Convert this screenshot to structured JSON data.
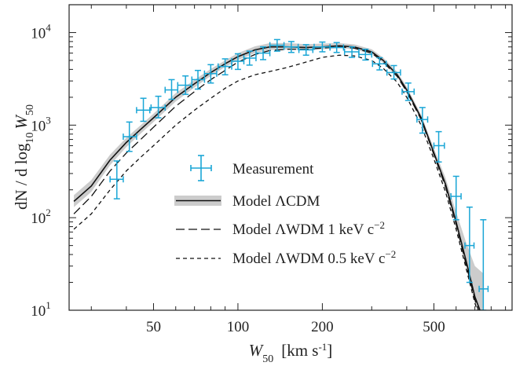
{
  "chart_data": {
    "type": "line",
    "xscale": "log",
    "yscale": "log",
    "xlim": [
      25,
      950
    ],
    "ylim": [
      10,
      20000
    ],
    "grid": false,
    "legend_position": "center",
    "x_ticks": [
      {
        "value": 50,
        "label": "50"
      },
      {
        "value": 100,
        "label": "100"
      },
      {
        "value": 200,
        "label": "200"
      },
      {
        "value": 500,
        "label": "500"
      }
    ],
    "y_ticks": [
      {
        "value": 10,
        "base": "10",
        "exp": "1"
      },
      {
        "value": 100,
        "base": "10",
        "exp": "2"
      },
      {
        "value": 1000,
        "base": "10",
        "exp": "3"
      },
      {
        "value": 10000,
        "base": "10",
        "exp": "4"
      }
    ],
    "xlabel": {
      "main": "W",
      "sub": "50",
      "units": "[km s",
      "units_exp": "-1",
      "units_end": "]"
    },
    "ylabel": {
      "main": "dN / d log",
      "sub": "10",
      "var": "W",
      "var_sub": "50"
    },
    "series": [
      {
        "name": "Measurement",
        "kind": "errorbar",
        "color": "#1aa6d6",
        "points": [
          {
            "x": 37,
            "y": 260,
            "xlo": 35,
            "xhi": 39,
            "ylo": 160,
            "yhi": 410
          },
          {
            "x": 41,
            "y": 750,
            "xlo": 39,
            "xhi": 43.5,
            "ylo": 520,
            "yhi": 1080
          },
          {
            "x": 46,
            "y": 1450,
            "xlo": 43.5,
            "xhi": 48.5,
            "ylo": 1100,
            "yhi": 1950
          },
          {
            "x": 52,
            "y": 1550,
            "xlo": 49,
            "xhi": 55,
            "ylo": 1200,
            "yhi": 2050
          },
          {
            "x": 58,
            "y": 2400,
            "xlo": 55,
            "xhi": 61,
            "ylo": 1900,
            "yhi": 3100
          },
          {
            "x": 65,
            "y": 2700,
            "xlo": 61,
            "xhi": 68.5,
            "ylo": 2150,
            "yhi": 3400
          },
          {
            "x": 72,
            "y": 3100,
            "xlo": 68.5,
            "xhi": 76,
            "ylo": 2450,
            "yhi": 3900
          },
          {
            "x": 80,
            "y": 3600,
            "xlo": 76,
            "xhi": 84,
            "ylo": 2850,
            "yhi": 4500
          },
          {
            "x": 90,
            "y": 4300,
            "xlo": 85,
            "xhi": 95,
            "ylo": 3500,
            "yhi": 5200
          },
          {
            "x": 100,
            "y": 4900,
            "xlo": 95,
            "xhi": 105,
            "ylo": 4000,
            "yhi": 5900
          },
          {
            "x": 110,
            "y": 5300,
            "xlo": 105,
            "xhi": 116,
            "ylo": 4450,
            "yhi": 6300
          },
          {
            "x": 123,
            "y": 6000,
            "xlo": 116,
            "xhi": 130,
            "ylo": 5100,
            "yhi": 7000
          },
          {
            "x": 138,
            "y": 7300,
            "xlo": 130,
            "xhi": 146,
            "ylo": 6300,
            "yhi": 8400
          },
          {
            "x": 155,
            "y": 7000,
            "xlo": 146,
            "xhi": 164,
            "ylo": 6100,
            "yhi": 8000
          },
          {
            "x": 175,
            "y": 6500,
            "xlo": 165,
            "xhi": 185,
            "ylo": 5700,
            "yhi": 7400
          },
          {
            "x": 200,
            "y": 7000,
            "xlo": 187,
            "xhi": 213,
            "ylo": 6200,
            "yhi": 7900
          },
          {
            "x": 225,
            "y": 6900,
            "xlo": 213,
            "xhi": 238,
            "ylo": 6100,
            "yhi": 7800
          },
          {
            "x": 255,
            "y": 6200,
            "xlo": 240,
            "xhi": 270,
            "ylo": 5400,
            "yhi": 7000
          },
          {
            "x": 285,
            "y": 5800,
            "xlo": 270,
            "xhi": 300,
            "ylo": 5050,
            "yhi": 6600
          },
          {
            "x": 320,
            "y": 4600,
            "xlo": 302,
            "xhi": 338,
            "ylo": 3950,
            "yhi": 5350
          },
          {
            "x": 360,
            "y": 3700,
            "xlo": 340,
            "xhi": 380,
            "ylo": 3150,
            "yhi": 4400
          },
          {
            "x": 405,
            "y": 2300,
            "xlo": 385,
            "xhi": 425,
            "ylo": 1850,
            "yhi": 2850
          },
          {
            "x": 455,
            "y": 1150,
            "xlo": 435,
            "xhi": 475,
            "ylo": 820,
            "yhi": 1550
          },
          {
            "x": 520,
            "y": 600,
            "xlo": 500,
            "xhi": 545,
            "ylo": 400,
            "yhi": 850
          },
          {
            "x": 600,
            "y": 170,
            "xlo": 575,
            "xhi": 625,
            "ylo": 95,
            "yhi": 280
          },
          {
            "x": 670,
            "y": 50,
            "xlo": 645,
            "xhi": 695,
            "ylo": 20,
            "yhi": 130
          },
          {
            "x": 750,
            "y": 17,
            "xlo": 725,
            "xhi": 780,
            "ylo": 10,
            "yhi": 95
          }
        ]
      },
      {
        "name": "Model ΛCDM",
        "kind": "line",
        "color": "#111111",
        "line_style": "solid",
        "band_color": "#cccccc",
        "x": [
          26,
          30,
          35,
          40,
          45,
          50,
          60,
          70,
          80,
          90,
          100,
          115,
          130,
          150,
          175,
          200,
          230,
          260,
          300,
          330,
          370,
          400,
          450,
          500,
          550,
          600,
          650,
          700,
          750
        ],
        "y": [
          150,
          220,
          420,
          650,
          900,
          1200,
          2000,
          2800,
          3700,
          4600,
          5500,
          6500,
          7000,
          7000,
          6900,
          7000,
          7200,
          7000,
          6200,
          5000,
          3500,
          2400,
          1200,
          500,
          230,
          90,
          35,
          14,
          8
        ],
        "band_lo": [
          130,
          190,
          370,
          580,
          810,
          1080,
          1800,
          2550,
          3400,
          4250,
          5050,
          6000,
          6500,
          6550,
          6500,
          6600,
          6800,
          6600,
          5850,
          4700,
          3300,
          2250,
          1120,
          460,
          210,
          80,
          30,
          12,
          7
        ],
        "band_hi": [
          175,
          255,
          480,
          730,
          1000,
          1330,
          2220,
          3080,
          4050,
          5000,
          6000,
          7100,
          7700,
          7700,
          7500,
          7600,
          7700,
          7450,
          6600,
          5350,
          3750,
          2600,
          1300,
          560,
          270,
          115,
          55,
          30,
          25
        ]
      },
      {
        "name": "Model ΛWDM 1 keV c",
        "name_exp": "−2",
        "kind": "line",
        "color": "#111111",
        "line_style": "long-dash",
        "x": [
          26,
          30,
          35,
          40,
          45,
          50,
          60,
          70,
          80,
          90,
          100,
          115,
          130,
          150,
          175,
          200,
          230,
          260,
          300,
          330,
          370,
          400,
          450,
          500,
          550,
          600,
          650,
          700,
          750
        ],
        "y": [
          110,
          170,
          320,
          500,
          700,
          950,
          1600,
          2300,
          3100,
          3900,
          4800,
          5800,
          6400,
          6600,
          6600,
          6800,
          7000,
          6800,
          6000,
          4800,
          3350,
          2300,
          1150,
          480,
          215,
          85,
          32,
          13,
          7
        ]
      },
      {
        "name": "Model ΛWDM 0.5 keV c",
        "name_exp": "−2",
        "kind": "line",
        "color": "#111111",
        "line_style": "short-dash",
        "x": [
          26,
          30,
          35,
          40,
          45,
          50,
          60,
          70,
          80,
          90,
          100,
          115,
          130,
          150,
          175,
          200,
          230,
          260,
          300,
          330,
          370,
          400,
          450,
          500,
          550,
          600,
          650,
          700,
          750
        ],
        "y": [
          75,
          110,
          200,
          320,
          450,
          600,
          1000,
          1450,
          1950,
          2500,
          3000,
          3500,
          3800,
          4200,
          4800,
          5400,
          5700,
          5600,
          5000,
          4100,
          2900,
          2000,
          1000,
          430,
          190,
          75,
          29,
          12,
          6
        ]
      }
    ]
  }
}
